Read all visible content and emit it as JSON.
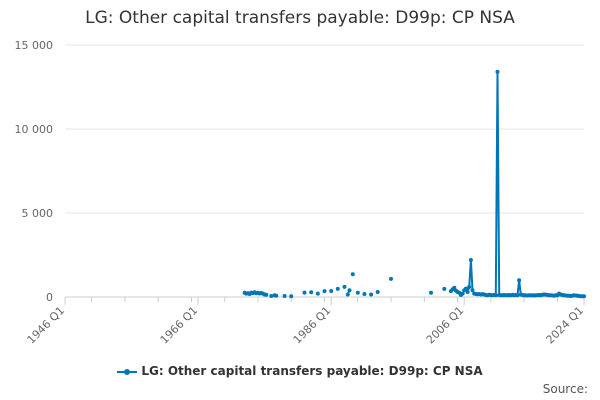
{
  "title": "LG: Other capital transfers payable: D99p: CP NSA",
  "credits": "Source:",
  "colors": {
    "series": "#0076b6",
    "grid": "#e6e6e6",
    "axis": "#cccccc"
  },
  "chart_data": {
    "type": "line",
    "title": "LG: Other capital transfers payable: D99p: CP NSA",
    "xlabel": "",
    "ylabel": "",
    "xlim": [
      "1946 Q1",
      "2024 Q1"
    ],
    "ylim": [
      0,
      15000
    ],
    "x_ticks": [
      "1946 Q1",
      "1966 Q1",
      "1986 Q1",
      "2006 Q1",
      "2024 Q1"
    ],
    "y_ticks": [
      {
        "value": 0,
        "label": "0"
      },
      {
        "value": 5000,
        "label": "5 000"
      },
      {
        "value": 10000,
        "label": "10 000"
      },
      {
        "value": 15000,
        "label": "15 000"
      }
    ],
    "grid": true,
    "legend_position": "bottom",
    "series": [
      {
        "name": "LG: Other capital transfers payable: D99p: CP NSA",
        "color": "#0076b6",
        "points": [
          [
            "1973 Q1",
            250
          ],
          [
            "1973 Q2",
            200
          ],
          [
            "1973 Q3",
            220
          ],
          [
            "1973 Q4",
            180
          ],
          [
            "1974 Q1",
            260
          ],
          [
            "1974 Q2",
            230
          ],
          [
            "1974 Q3",
            280
          ],
          [
            "1974 Q4",
            220
          ],
          [
            "1975 Q1",
            250
          ],
          [
            "1975 Q2",
            210
          ],
          [
            "1975 Q3",
            240
          ],
          [
            "1975 Q4",
            200
          ],
          [
            "1976 Q1",
            150
          ],
          [
            "1976 Q2",
            130
          ],
          [
            "1977 Q1",
            60
          ],
          [
            "1977 Q3",
            100
          ],
          [
            "1977 Q4",
            80
          ],
          [
            "1979 Q1",
            60
          ],
          [
            "1980 Q1",
            50
          ],
          [
            "1982 Q1",
            260
          ],
          [
            "1983 Q1",
            280
          ],
          [
            "1984 Q1",
            200
          ],
          [
            "1985 Q1",
            350
          ],
          [
            "1986 Q1",
            360
          ],
          [
            "1987 Q1",
            480
          ],
          [
            "1988 Q1",
            600
          ],
          [
            "1988 Q3",
            150
          ],
          [
            "1988 Q4",
            400
          ],
          [
            "1989 Q2",
            1350
          ],
          [
            "1990 Q1",
            250
          ],
          [
            "1991 Q1",
            180
          ],
          [
            "1992 Q1",
            150
          ],
          [
            "1993 Q1",
            300
          ],
          [
            "1995 Q1",
            1080
          ],
          [
            "2001 Q1",
            250
          ],
          [
            "2003 Q1",
            480
          ],
          [
            "2004 Q1",
            350
          ],
          [
            "2004 Q2",
            450
          ],
          [
            "2004 Q3",
            550
          ],
          [
            "2004 Q4",
            380
          ],
          [
            "2005 Q1",
            300
          ],
          [
            "2005 Q2",
            250
          ],
          [
            "2005 Q3",
            120
          ],
          [
            "2005 Q4",
            200
          ],
          [
            "2006 Q1",
            400
          ],
          [
            "2006 Q2",
            500
          ],
          [
            "2006 Q3",
            300
          ],
          [
            "2006 Q4",
            600
          ],
          [
            "2007 Q1",
            2200
          ],
          [
            "2007 Q2",
            400
          ],
          [
            "2007 Q3",
            200
          ],
          [
            "2007 Q4",
            180
          ],
          [
            "2008 Q1",
            160
          ],
          [
            "2008 Q2",
            180
          ],
          [
            "2008 Q3",
            150
          ],
          [
            "2008 Q4",
            170
          ],
          [
            "2009 Q1",
            150
          ],
          [
            "2009 Q2",
            120
          ],
          [
            "2009 Q3",
            110
          ],
          [
            "2009 Q4",
            130
          ],
          [
            "2010 Q1",
            120
          ],
          [
            "2010 Q2",
            110
          ],
          [
            "2010 Q3",
            120
          ],
          [
            "2010 Q4",
            110
          ],
          [
            "2011 Q1",
            13400
          ],
          [
            "2011 Q2",
            120
          ],
          [
            "2011 Q3",
            100
          ],
          [
            "2011 Q4",
            110
          ],
          [
            "2012 Q1",
            120
          ],
          [
            "2012 Q2",
            110
          ],
          [
            "2012 Q3",
            100
          ],
          [
            "2012 Q4",
            120
          ],
          [
            "2013 Q1",
            110
          ],
          [
            "2013 Q2",
            130
          ],
          [
            "2013 Q3",
            110
          ],
          [
            "2013 Q4",
            120
          ],
          [
            "2014 Q1",
            110
          ],
          [
            "2014 Q2",
            1000
          ],
          [
            "2014 Q3",
            150
          ],
          [
            "2014 Q4",
            120
          ],
          [
            "2015 Q1",
            100
          ],
          [
            "2015 Q2",
            110
          ],
          [
            "2015 Q3",
            90
          ],
          [
            "2015 Q4",
            100
          ],
          [
            "2016 Q1",
            110
          ],
          [
            "2016 Q2",
            100
          ],
          [
            "2016 Q3",
            90
          ],
          [
            "2016 Q4",
            100
          ],
          [
            "2017 Q1",
            110
          ],
          [
            "2017 Q2",
            120
          ],
          [
            "2017 Q3",
            100
          ],
          [
            "2017 Q4",
            130
          ],
          [
            "2018 Q1",
            150
          ],
          [
            "2018 Q2",
            140
          ],
          [
            "2018 Q3",
            120
          ],
          [
            "2018 Q4",
            110
          ],
          [
            "2019 Q1",
            100
          ],
          [
            "2019 Q2",
            90
          ],
          [
            "2019 Q3",
            80
          ],
          [
            "2019 Q4",
            100
          ],
          [
            "2020 Q1",
            110
          ],
          [
            "2020 Q2",
            200
          ],
          [
            "2020 Q3",
            150
          ],
          [
            "2020 Q4",
            120
          ],
          [
            "2021 Q1",
            100
          ],
          [
            "2021 Q2",
            90
          ],
          [
            "2021 Q3",
            80
          ],
          [
            "2021 Q4",
            70
          ],
          [
            "2022 Q1",
            60
          ],
          [
            "2022 Q2",
            80
          ],
          [
            "2022 Q3",
            100
          ],
          [
            "2022 Q4",
            90
          ],
          [
            "2023 Q1",
            70
          ],
          [
            "2023 Q2",
            60
          ],
          [
            "2023 Q3",
            50
          ],
          [
            "2023 Q4",
            40
          ],
          [
            "2024 Q1",
            50
          ]
        ]
      }
    ]
  }
}
